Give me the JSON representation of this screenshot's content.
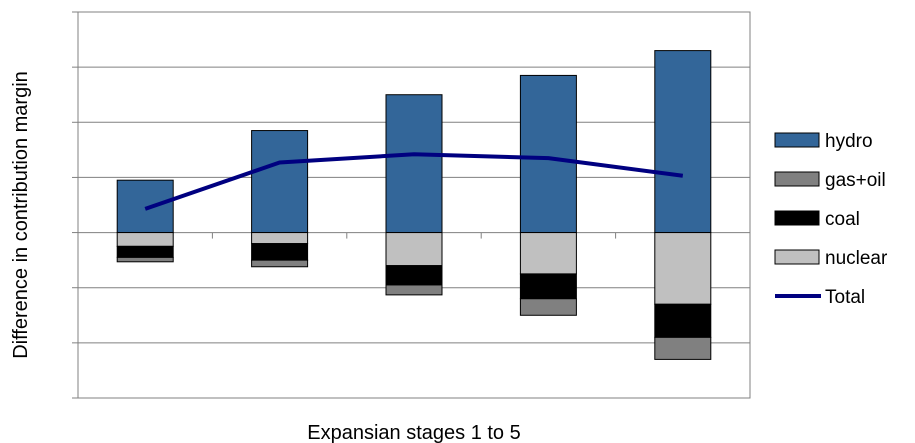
{
  "chart_data": {
    "type": "bar",
    "stacked": true,
    "title": "",
    "xlabel": "Expansian stages 1 to 5",
    "ylabel": "Difference in contribution margin",
    "categories": [
      "",
      "",
      "",
      "",
      ""
    ],
    "ylim": [
      -3.0,
      4.0
    ],
    "y_grid_step": 1,
    "grid": true,
    "y_tick_labels_shown": false,
    "legend_position": "right",
    "series": [
      {
        "name": "hydro",
        "type": "bar",
        "color": "#336699",
        "values": [
          0.95,
          1.85,
          2.5,
          2.85,
          3.3
        ]
      },
      {
        "name": "gas+oil",
        "type": "bar",
        "color": "#808080",
        "values": [
          -0.08,
          -0.12,
          -0.18,
          -0.3,
          -0.4
        ]
      },
      {
        "name": "coal",
        "type": "bar",
        "color": "#000000",
        "values": [
          -0.2,
          -0.3,
          -0.35,
          -0.45,
          -0.6
        ]
      },
      {
        "name": "nuclear",
        "type": "bar",
        "color": "#c0c0c0",
        "values": [
          -0.25,
          -0.2,
          -0.6,
          -0.75,
          -1.3
        ]
      },
      {
        "name": "Total",
        "type": "line",
        "color": "#000080",
        "values": [
          0.43,
          1.27,
          1.42,
          1.35,
          1.03
        ]
      }
    ],
    "stack_order_negative": [
      "nuclear",
      "coal",
      "gas+oil"
    ]
  }
}
